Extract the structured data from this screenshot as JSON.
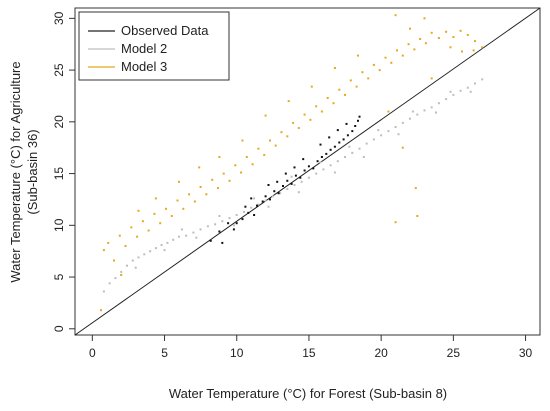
{
  "chart_data": {
    "type": "scatter",
    "title": "",
    "xlabel": "Water Temperature (°C) for Forest (Sub-basin 8)",
    "ylabel_line1": "Water Temperature (°C) for Agriculture",
    "ylabel_line2": "(Sub-basin 36)",
    "xlim": [
      -1.2,
      31
    ],
    "ylim": [
      -0.6,
      31
    ],
    "xticks": [
      0,
      5,
      10,
      15,
      20,
      25,
      30
    ],
    "yticks": [
      0,
      5,
      10,
      15,
      20,
      25,
      30
    ],
    "grid": false,
    "legend_position": "top-left",
    "reference_line": {
      "name": "Observed Data",
      "color": "#222222",
      "x": [
        -1.2,
        31
      ],
      "y": [
        -1.2,
        31
      ]
    },
    "series": [
      {
        "name": "Model 2",
        "color": "#bdbdbd",
        "points": [
          [
            0.8,
            3.6
          ],
          [
            1.2,
            4.4
          ],
          [
            1.6,
            4.9
          ],
          [
            2.0,
            5.5
          ],
          [
            2.4,
            6.1
          ],
          [
            2.8,
            6.6
          ],
          [
            3.2,
            6.9
          ],
          [
            3.6,
            7.2
          ],
          [
            4.0,
            7.5
          ],
          [
            4.4,
            7.8
          ],
          [
            4.8,
            8.1
          ],
          [
            5.2,
            8.3
          ],
          [
            5.6,
            8.6
          ],
          [
            6.0,
            8.9
          ],
          [
            6.5,
            9.0
          ],
          [
            7.0,
            9.3
          ],
          [
            7.5,
            9.6
          ],
          [
            8.0,
            9.9
          ],
          [
            8.5,
            10.1
          ],
          [
            9.0,
            10.4
          ],
          [
            9.5,
            10.7
          ],
          [
            10.0,
            11.0
          ],
          [
            10.5,
            11.3
          ],
          [
            11.0,
            11.7
          ],
          [
            11.5,
            12.0
          ],
          [
            12.0,
            12.4
          ],
          [
            12.5,
            12.8
          ],
          [
            13.0,
            13.1
          ],
          [
            13.5,
            13.5
          ],
          [
            14.0,
            13.9
          ],
          [
            14.5,
            14.2
          ],
          [
            15.0,
            14.6
          ],
          [
            15.5,
            15.0
          ],
          [
            16.0,
            15.4
          ],
          [
            16.5,
            15.8
          ],
          [
            17.0,
            16.2
          ],
          [
            17.5,
            16.6
          ],
          [
            18.0,
            17.0
          ],
          [
            18.5,
            17.4
          ],
          [
            19.0,
            17.9
          ],
          [
            19.5,
            18.3
          ],
          [
            20.0,
            18.7
          ],
          [
            20.5,
            19.1
          ],
          [
            21.0,
            19.5
          ],
          [
            21.5,
            19.9
          ],
          [
            22.0,
            20.3
          ],
          [
            22.5,
            20.7
          ],
          [
            23.0,
            21.1
          ],
          [
            23.5,
            21.4
          ],
          [
            24.0,
            21.8
          ],
          [
            24.5,
            22.2
          ],
          [
            25.0,
            22.6
          ],
          [
            25.5,
            23.0
          ],
          [
            26.0,
            23.3
          ],
          [
            26.5,
            23.7
          ],
          [
            27.0,
            24.1
          ],
          [
            3.0,
            5.9
          ],
          [
            5.0,
            7.6
          ],
          [
            7.2,
            8.8
          ],
          [
            9.8,
            10.0
          ],
          [
            12.2,
            11.8
          ],
          [
            14.3,
            13.2
          ],
          [
            16.8,
            15.1
          ],
          [
            18.8,
            16.6
          ],
          [
            21.2,
            18.8
          ],
          [
            23.8,
            20.9
          ],
          [
            26.2,
            22.9
          ],
          [
            6.2,
            9.6
          ],
          [
            8.8,
            10.9
          ],
          [
            11.2,
            12.6
          ],
          [
            13.8,
            14.7
          ],
          [
            15.8,
            16.1
          ],
          [
            17.8,
            17.6
          ],
          [
            19.8,
            19.2
          ],
          [
            22.2,
            21.0
          ],
          [
            24.8,
            22.9
          ]
        ]
      },
      {
        "name": "Model 3",
        "color": "#e6a81e",
        "points": [
          [
            0.6,
            1.8
          ],
          [
            0.8,
            7.6
          ],
          [
            1.1,
            8.3
          ],
          [
            1.5,
            6.6
          ],
          [
            1.9,
            9.0
          ],
          [
            2.3,
            8.0
          ],
          [
            2.7,
            9.8
          ],
          [
            3.1,
            8.9
          ],
          [
            3.5,
            10.4
          ],
          [
            3.9,
            9.5
          ],
          [
            4.3,
            11.1
          ],
          [
            4.7,
            10.2
          ],
          [
            5.1,
            11.6
          ],
          [
            5.5,
            10.9
          ],
          [
            5.9,
            12.4
          ],
          [
            6.3,
            11.6
          ],
          [
            6.7,
            13.0
          ],
          [
            7.1,
            12.3
          ],
          [
            7.5,
            13.7
          ],
          [
            7.9,
            13.0
          ],
          [
            8.3,
            14.4
          ],
          [
            8.7,
            13.6
          ],
          [
            9.1,
            15.0
          ],
          [
            9.5,
            14.3
          ],
          [
            9.9,
            15.8
          ],
          [
            10.3,
            15.1
          ],
          [
            10.7,
            16.6
          ],
          [
            11.1,
            15.9
          ],
          [
            11.5,
            17.4
          ],
          [
            11.9,
            16.8
          ],
          [
            12.3,
            18.2
          ],
          [
            12.7,
            17.7
          ],
          [
            13.1,
            19.0
          ],
          [
            13.5,
            18.6
          ],
          [
            13.9,
            19.9
          ],
          [
            14.3,
            19.4
          ],
          [
            14.7,
            20.7
          ],
          [
            15.1,
            20.2
          ],
          [
            15.5,
            21.5
          ],
          [
            15.9,
            21.0
          ],
          [
            16.3,
            22.3
          ],
          [
            16.7,
            21.8
          ],
          [
            17.1,
            23.1
          ],
          [
            17.5,
            22.6
          ],
          [
            17.9,
            24.0
          ],
          [
            18.3,
            23.4
          ],
          [
            18.7,
            24.8
          ],
          [
            19.1,
            24.2
          ],
          [
            19.5,
            25.5
          ],
          [
            19.9,
            25.0
          ],
          [
            20.3,
            26.2
          ],
          [
            20.7,
            25.7
          ],
          [
            21.1,
            26.9
          ],
          [
            21.5,
            26.4
          ],
          [
            21.9,
            27.5
          ],
          [
            22.3,
            27.0
          ],
          [
            22.7,
            28.0
          ],
          [
            23.1,
            27.6
          ],
          [
            23.5,
            28.6
          ],
          [
            24.0,
            28.1
          ],
          [
            24.5,
            28.7
          ],
          [
            25.0,
            28.2
          ],
          [
            25.5,
            28.8
          ],
          [
            26.0,
            28.4
          ],
          [
            26.5,
            27.8
          ],
          [
            27.0,
            27.2
          ],
          [
            21.0,
            30.3
          ],
          [
            23.0,
            30.0
          ],
          [
            22.0,
            29.0
          ],
          [
            24.8,
            27.2
          ],
          [
            25.6,
            26.8
          ],
          [
            26.4,
            26.9
          ],
          [
            21.5,
            17.5
          ],
          [
            22.4,
            13.6
          ],
          [
            21.0,
            10.3
          ],
          [
            22.5,
            10.9
          ],
          [
            20.5,
            21.0
          ],
          [
            23.5,
            24.2
          ],
          [
            2.0,
            5.2
          ],
          [
            3.2,
            11.4
          ],
          [
            4.4,
            12.6
          ],
          [
            6.0,
            14.2
          ],
          [
            7.4,
            15.6
          ],
          [
            8.8,
            16.6
          ],
          [
            10.4,
            18.2
          ],
          [
            12.0,
            20.6
          ],
          [
            13.6,
            22.0
          ],
          [
            15.2,
            23.4
          ],
          [
            16.8,
            25.2
          ],
          [
            18.4,
            26.4
          ]
        ]
      },
      {
        "name": "",
        "color": "#111111",
        "points": [
          [
            8.2,
            8.5
          ],
          [
            9.0,
            8.3
          ],
          [
            9.8,
            9.6
          ],
          [
            10.0,
            10.2
          ],
          [
            10.4,
            10.6
          ],
          [
            10.8,
            11.2
          ],
          [
            11.2,
            11.0
          ],
          [
            11.4,
            11.9
          ],
          [
            11.8,
            12.3
          ],
          [
            12.0,
            12.8
          ],
          [
            12.3,
            12.5
          ],
          [
            12.6,
            13.3
          ],
          [
            12.9,
            13.1
          ],
          [
            13.2,
            13.8
          ],
          [
            13.5,
            14.3
          ],
          [
            13.8,
            14.0
          ],
          [
            14.1,
            14.8
          ],
          [
            14.4,
            14.6
          ],
          [
            14.7,
            15.3
          ],
          [
            15.0,
            15.7
          ],
          [
            15.3,
            15.5
          ],
          [
            15.6,
            16.2
          ],
          [
            15.9,
            16.6
          ],
          [
            16.2,
            16.9
          ],
          [
            16.5,
            17.3
          ],
          [
            16.8,
            17.6
          ],
          [
            17.1,
            18.0
          ],
          [
            17.4,
            18.3
          ],
          [
            17.7,
            18.7
          ],
          [
            18.0,
            19.1
          ],
          [
            18.2,
            19.6
          ],
          [
            18.4,
            20.1
          ],
          [
            18.5,
            20.5
          ],
          [
            17.0,
            19.2
          ],
          [
            15.8,
            17.8
          ],
          [
            14.6,
            16.4
          ],
          [
            13.4,
            15.0
          ],
          [
            12.2,
            13.9
          ],
          [
            11.0,
            12.6
          ],
          [
            10.6,
            11.8
          ],
          [
            9.4,
            10.2
          ],
          [
            8.8,
            9.4
          ],
          [
            16.4,
            18.5
          ],
          [
            17.6,
            19.8
          ],
          [
            14.0,
            15.6
          ],
          [
            12.8,
            14.2
          ]
        ]
      }
    ]
  }
}
